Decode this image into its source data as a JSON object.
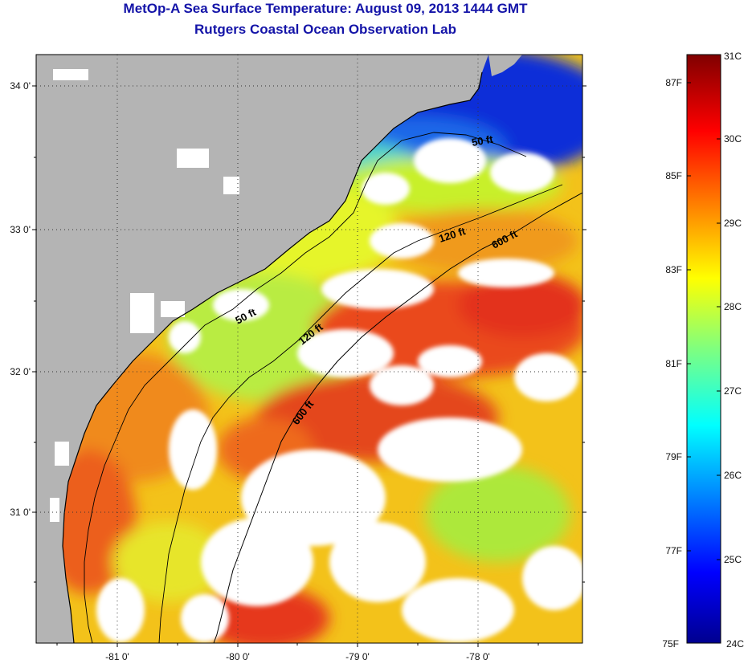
{
  "header": {
    "title": "MetOp-A Sea Surface Temperature:  August 09, 2013 1444 GMT",
    "subtitle": "Rutgers Coastal Ocean Observation Lab"
  },
  "map": {
    "longitude_ticks": [
      "-81 0'",
      "-80 0'",
      "-79 0'",
      "-78 0'"
    ],
    "latitude_ticks": [
      "34 0'",
      "33 0'",
      "32 0'",
      "31 0'"
    ],
    "isobath_labels": [
      "50 ft",
      "120 ft",
      "600 ft",
      "50 ft",
      "120 ft",
      "600 ft"
    ],
    "colors": {
      "land": "#b4b4b4",
      "cloud": "#ffffff",
      "coast": "#000000"
    }
  },
  "colorbar": {
    "fahrenheit_labels": [
      "87F",
      "85F",
      "83F",
      "81F",
      "79F",
      "77F",
      "75F"
    ],
    "celsius_labels": [
      "31C",
      "30C",
      "29C",
      "28C",
      "27C",
      "26C",
      "25C",
      "24C"
    ],
    "range_celsius": [
      24,
      31
    ]
  }
}
